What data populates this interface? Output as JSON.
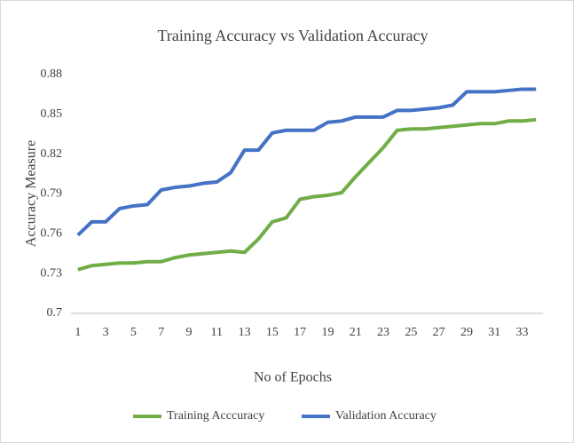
{
  "chart_data": {
    "type": "line",
    "title": "Training  Accuracy vs Validation Accuracy",
    "x_label": "No of Epochs",
    "y_label": "Accuracy  Measure",
    "categories": [
      1,
      null,
      3,
      null,
      5,
      null,
      7,
      null,
      9,
      null,
      11,
      null,
      13,
      null,
      15,
      null,
      17,
      null,
      19,
      null,
      21,
      null,
      23,
      null,
      25,
      null,
      27,
      null,
      29,
      null,
      31,
      null,
      33,
      null
    ],
    "series": [
      {
        "name": "Training Acccuracy",
        "color": "#70ad47",
        "values": [
          0.733,
          0.736,
          0.737,
          0.738,
          0.738,
          0.739,
          0.739,
          0.742,
          0.744,
          0.745,
          0.746,
          0.747,
          0.746,
          0.756,
          0.769,
          0.772,
          0.786,
          0.788,
          0.789,
          0.791,
          0.803,
          0.814,
          0.825,
          0.838,
          0.839,
          0.839,
          0.84,
          0.841,
          0.842,
          0.843,
          0.843,
          0.845,
          0.845,
          0.846
        ]
      },
      {
        "name": "Validation Accuracy",
        "color": "#4472c4",
        "values": [
          0.759,
          0.769,
          0.769,
          0.779,
          0.781,
          0.782,
          0.793,
          0.795,
          0.796,
          0.798,
          0.799,
          0.806,
          0.823,
          0.823,
          0.836,
          0.838,
          0.838,
          0.838,
          0.844,
          0.845,
          0.848,
          0.848,
          0.848,
          0.853,
          0.853,
          0.854,
          0.855,
          0.857,
          0.867,
          0.867,
          0.867,
          0.868,
          0.869,
          0.869
        ]
      }
    ],
    "ylim": [
      0.7,
      0.88
    ],
    "yticks": [
      0.7,
      0.73,
      0.76,
      0.79,
      0.82,
      0.85,
      0.88
    ],
    "grid": false,
    "legend": "bottom"
  }
}
